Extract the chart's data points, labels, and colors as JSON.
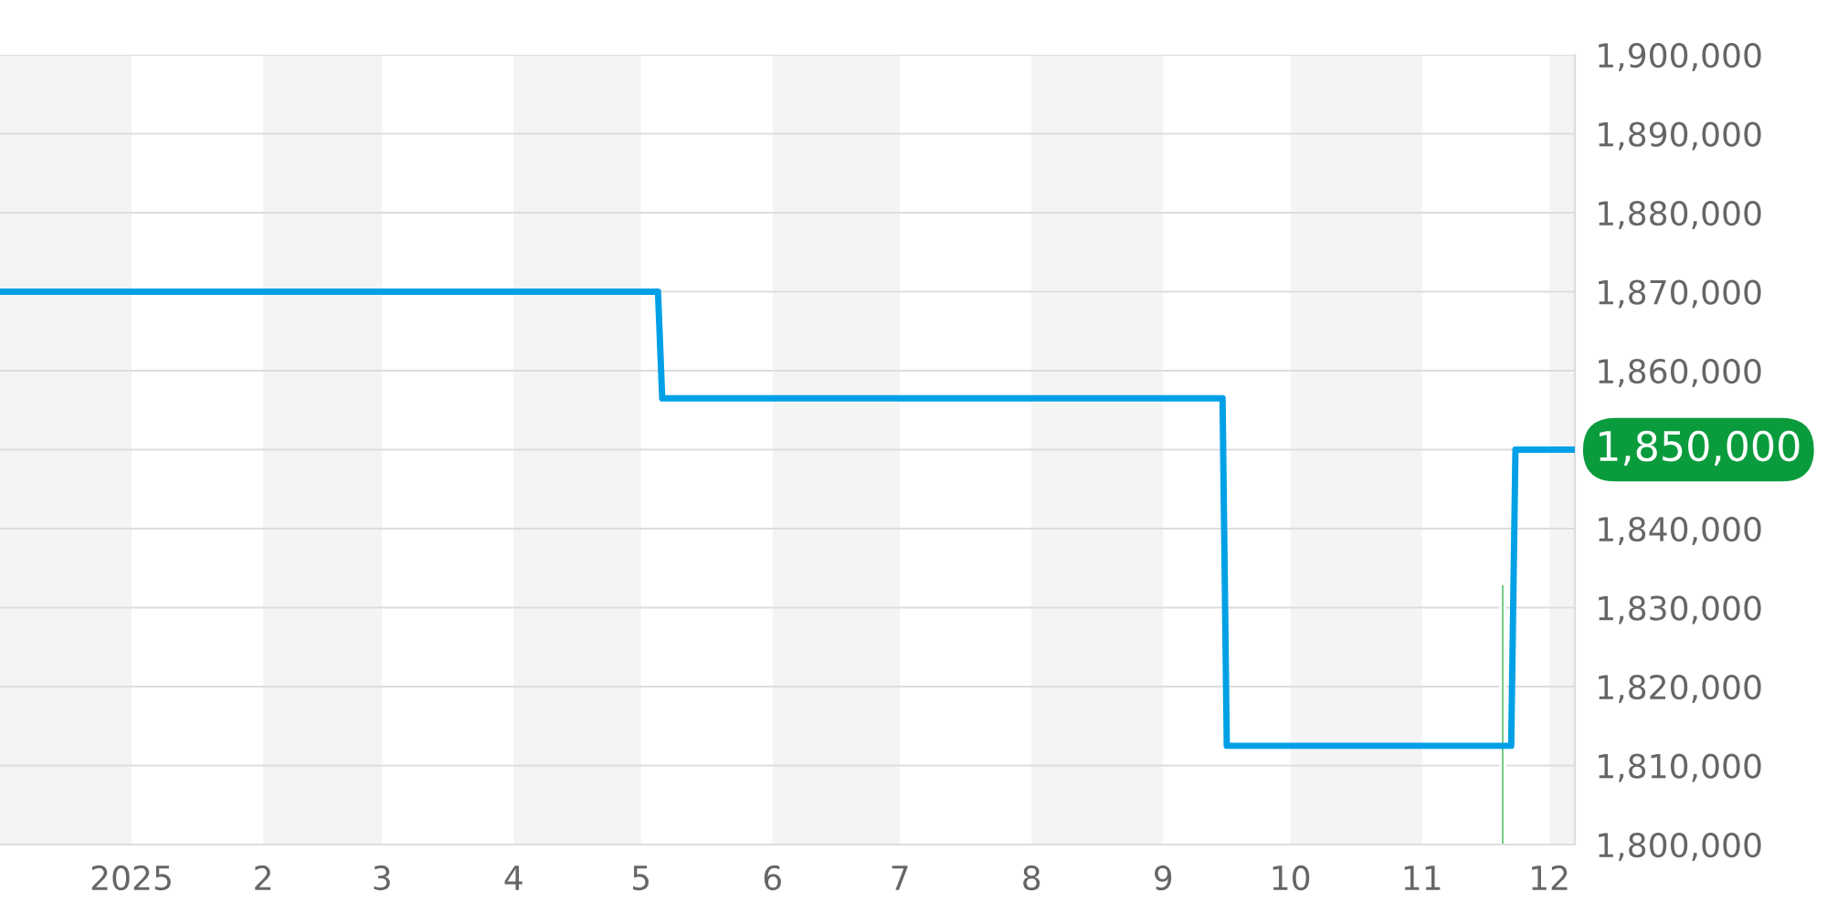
{
  "chart_data": {
    "type": "line",
    "series": [
      {
        "color": "#00a0e6",
        "x": [
          "2024-12-01",
          "2025-05-05",
          "2025-05-06",
          "2025-09-15",
          "2025-09-16",
          "2025-11-22",
          "2025-11-23",
          "2025-12-07"
        ],
        "values": [
          1870000,
          1870000,
          1856500,
          1856500,
          1812500,
          1812500,
          1850000,
          1850000
        ]
      },
      {
        "type": "bar",
        "color": "#6cc97c",
        "x": [
          "2025-11-20"
        ],
        "values": [
          1833000
        ]
      }
    ],
    "xlim": [
      "2024-12-01",
      "2025-12-07"
    ],
    "xticks": [
      {
        "value": "2025-01-01",
        "label": "2025"
      },
      {
        "value": "2025-02-01",
        "label": "2"
      },
      {
        "value": "2025-03-01",
        "label": "3"
      },
      {
        "value": "2025-04-01",
        "label": "4"
      },
      {
        "value": "2025-05-01",
        "label": "5"
      },
      {
        "value": "2025-06-01",
        "label": "6"
      },
      {
        "value": "2025-07-01",
        "label": "7"
      },
      {
        "value": "2025-08-01",
        "label": "8"
      },
      {
        "value": "2025-09-01",
        "label": "9"
      },
      {
        "value": "2025-10-01",
        "label": "10"
      },
      {
        "value": "2025-11-01",
        "label": "11"
      },
      {
        "value": "2025-12-01",
        "label": "12"
      }
    ],
    "ylim": [
      1800000,
      1900000
    ],
    "yticks": [
      {
        "value": 1800000,
        "label": "1,800,000"
      },
      {
        "value": 1810000,
        "label": "1,810,000"
      },
      {
        "value": 1820000,
        "label": "1,820,000"
      },
      {
        "value": 1830000,
        "label": "1,830,000"
      },
      {
        "value": 1840000,
        "label": "1,840,000"
      },
      {
        "value": 1850000,
        "label": null
      },
      {
        "value": 1860000,
        "label": "1,860,000"
      },
      {
        "value": 1870000,
        "label": "1,870,000"
      },
      {
        "value": 1880000,
        "label": "1,880,000"
      },
      {
        "value": 1890000,
        "label": "1,890,000"
      },
      {
        "value": 1900000,
        "label": "1,900,000"
      }
    ],
    "bands": [
      {
        "axis": "x",
        "from": "2024-12-01",
        "to": "2025-01-01",
        "color": "#f4f4f4"
      },
      {
        "axis": "x",
        "from": "2025-02-01",
        "to": "2025-03-01",
        "color": "#f4f4f4"
      },
      {
        "axis": "x",
        "from": "2025-04-01",
        "to": "2025-05-01",
        "color": "#f4f4f4"
      },
      {
        "axis": "x",
        "from": "2025-06-01",
        "to": "2025-07-01",
        "color": "#f4f4f4"
      },
      {
        "axis": "x",
        "from": "2025-08-01",
        "to": "2025-09-01",
        "color": "#f4f4f4"
      },
      {
        "axis": "x",
        "from": "2025-10-01",
        "to": "2025-11-01",
        "color": "#f4f4f4"
      },
      {
        "axis": "x",
        "from": "2025-12-01",
        "to": "2025-12-07",
        "color": "#f4f4f4"
      }
    ],
    "annotations": [
      {
        "text": "1,850,000",
        "x": "2025-12-07",
        "y": 1850000
      }
    ],
    "grid": "y",
    "legend": false
  }
}
